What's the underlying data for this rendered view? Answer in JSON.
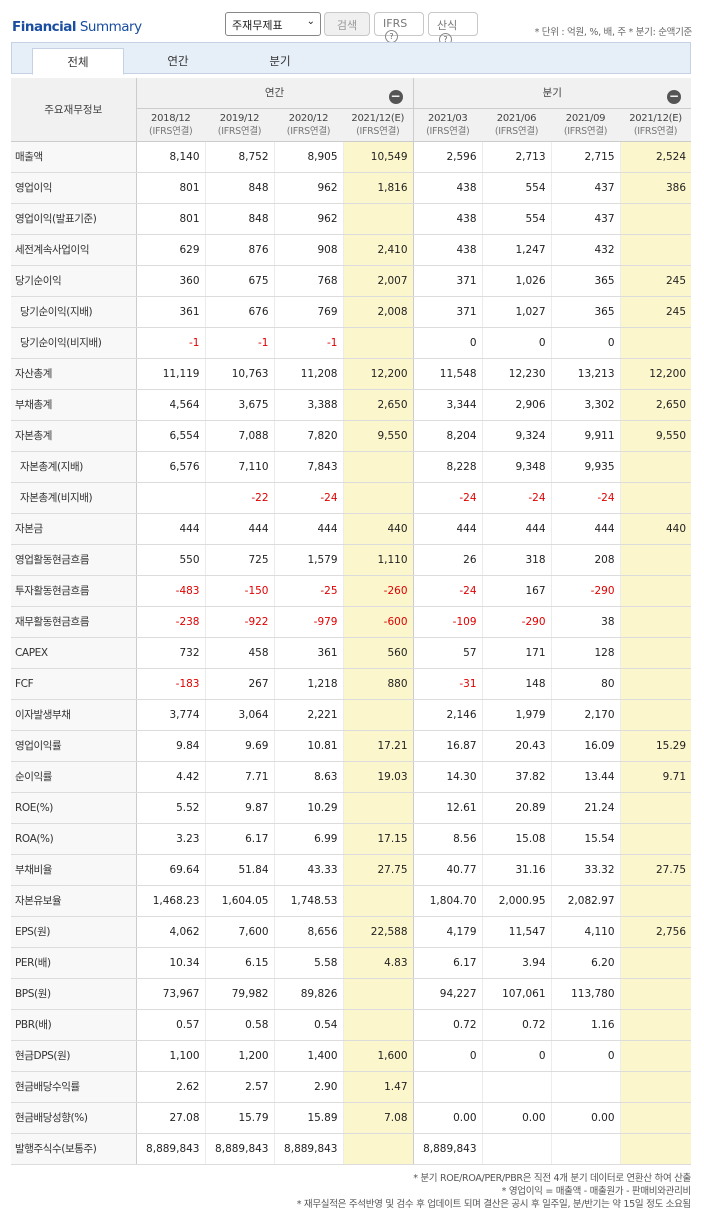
{
  "header": {
    "title_bold": "Financial",
    "title_rest": " Summary",
    "select_value": "주재무제표",
    "search_label": "검색",
    "ifrs_label": "IFRS",
    "calc_label": "산식",
    "help_icon": "?",
    "unit_note": "* 단위 : 억원, %, 배, 주    * 분기: 순액기준"
  },
  "tabs": [
    "전체",
    "연간",
    "분기"
  ],
  "table": {
    "corner_label": "주요재무정보",
    "annual_label": "연간",
    "quarter_label": "분기",
    "collapse_icon": "−",
    "columns": [
      {
        "period": "2018/12",
        "basis": "(IFRS연결)",
        "estimate": false
      },
      {
        "period": "2019/12",
        "basis": "(IFRS연결)",
        "estimate": false
      },
      {
        "period": "2020/12",
        "basis": "(IFRS연결)",
        "estimate": false
      },
      {
        "period": "2021/12(E)",
        "basis": "(IFRS연결)",
        "estimate": true
      },
      {
        "period": "2021/03",
        "basis": "(IFRS연결)",
        "estimate": false
      },
      {
        "period": "2021/06",
        "basis": "(IFRS연결)",
        "estimate": false
      },
      {
        "period": "2021/09",
        "basis": "(IFRS연결)",
        "estimate": false
      },
      {
        "period": "2021/12(E)",
        "basis": "(IFRS연결)",
        "estimate": true
      }
    ],
    "rows": [
      {
        "label": "매출액",
        "indent": false,
        "values": [
          "8,140",
          "8,752",
          "8,905",
          "10,549",
          "2,596",
          "2,713",
          "2,715",
          "2,524"
        ]
      },
      {
        "label": "영업이익",
        "indent": false,
        "values": [
          "801",
          "848",
          "962",
          "1,816",
          "438",
          "554",
          "437",
          "386"
        ]
      },
      {
        "label": "영업이익(발표기준)",
        "indent": false,
        "values": [
          "801",
          "848",
          "962",
          "",
          "438",
          "554",
          "437",
          ""
        ]
      },
      {
        "label": "세전계속사업이익",
        "indent": false,
        "values": [
          "629",
          "876",
          "908",
          "2,410",
          "438",
          "1,247",
          "432",
          ""
        ]
      },
      {
        "label": "당기순이익",
        "indent": false,
        "values": [
          "360",
          "675",
          "768",
          "2,007",
          "371",
          "1,026",
          "365",
          "245"
        ]
      },
      {
        "label": "당기순이익(지배)",
        "indent": true,
        "values": [
          "361",
          "676",
          "769",
          "2,008",
          "371",
          "1,027",
          "365",
          "245"
        ]
      },
      {
        "label": "당기순이익(비지배)",
        "indent": true,
        "values": [
          "-1",
          "-1",
          "-1",
          "",
          "0",
          "0",
          "0",
          ""
        ]
      },
      {
        "label": "자산총계",
        "indent": false,
        "values": [
          "11,119",
          "10,763",
          "11,208",
          "12,200",
          "11,548",
          "12,230",
          "13,213",
          "12,200"
        ]
      },
      {
        "label": "부채총계",
        "indent": false,
        "values": [
          "4,564",
          "3,675",
          "3,388",
          "2,650",
          "3,344",
          "2,906",
          "3,302",
          "2,650"
        ]
      },
      {
        "label": "자본총계",
        "indent": false,
        "values": [
          "6,554",
          "7,088",
          "7,820",
          "9,550",
          "8,204",
          "9,324",
          "9,911",
          "9,550"
        ]
      },
      {
        "label": "자본총계(지배)",
        "indent": true,
        "values": [
          "6,576",
          "7,110",
          "7,843",
          "",
          "8,228",
          "9,348",
          "9,935",
          ""
        ]
      },
      {
        "label": "자본총계(비지배)",
        "indent": true,
        "values": [
          "",
          "-22",
          "-24",
          "",
          "-24",
          "-24",
          "-24",
          ""
        ]
      },
      {
        "label": "자본금",
        "indent": false,
        "values": [
          "444",
          "444",
          "444",
          "440",
          "444",
          "444",
          "444",
          "440"
        ]
      },
      {
        "label": "영업활동현금흐름",
        "indent": false,
        "values": [
          "550",
          "725",
          "1,579",
          "1,110",
          "26",
          "318",
          "208",
          ""
        ]
      },
      {
        "label": "투자활동현금흐름",
        "indent": false,
        "values": [
          "-483",
          "-150",
          "-25",
          "-260",
          "-24",
          "167",
          "-290",
          ""
        ]
      },
      {
        "label": "재무활동현금흐름",
        "indent": false,
        "values": [
          "-238",
          "-922",
          "-979",
          "-600",
          "-109",
          "-290",
          "38",
          ""
        ]
      },
      {
        "label": "CAPEX",
        "indent": false,
        "values": [
          "732",
          "458",
          "361",
          "560",
          "57",
          "171",
          "128",
          ""
        ]
      },
      {
        "label": "FCF",
        "indent": false,
        "values": [
          "-183",
          "267",
          "1,218",
          "880",
          "-31",
          "148",
          "80",
          ""
        ]
      },
      {
        "label": "이자발생부채",
        "indent": false,
        "values": [
          "3,774",
          "3,064",
          "2,221",
          "",
          "2,146",
          "1,979",
          "2,170",
          ""
        ]
      },
      {
        "label": "영업이익률",
        "indent": false,
        "values": [
          "9.84",
          "9.69",
          "10.81",
          "17.21",
          "16.87",
          "20.43",
          "16.09",
          "15.29"
        ]
      },
      {
        "label": "순이익률",
        "indent": false,
        "values": [
          "4.42",
          "7.71",
          "8.63",
          "19.03",
          "14.30",
          "37.82",
          "13.44",
          "9.71"
        ]
      },
      {
        "label": "ROE(%)",
        "indent": false,
        "values": [
          "5.52",
          "9.87",
          "10.29",
          "",
          "12.61",
          "20.89",
          "21.24",
          ""
        ]
      },
      {
        "label": "ROA(%)",
        "indent": false,
        "values": [
          "3.23",
          "6.17",
          "6.99",
          "17.15",
          "8.56",
          "15.08",
          "15.54",
          ""
        ]
      },
      {
        "label": "부채비율",
        "indent": false,
        "values": [
          "69.64",
          "51.84",
          "43.33",
          "27.75",
          "40.77",
          "31.16",
          "33.32",
          "27.75"
        ]
      },
      {
        "label": "자본유보율",
        "indent": false,
        "values": [
          "1,468.23",
          "1,604.05",
          "1,748.53",
          "",
          "1,804.70",
          "2,000.95",
          "2,082.97",
          ""
        ]
      },
      {
        "label": "EPS(원)",
        "indent": false,
        "values": [
          "4,062",
          "7,600",
          "8,656",
          "22,588",
          "4,179",
          "11,547",
          "4,110",
          "2,756"
        ]
      },
      {
        "label": "PER(배)",
        "indent": false,
        "values": [
          "10.34",
          "6.15",
          "5.58",
          "4.83",
          "6.17",
          "3.94",
          "6.20",
          ""
        ]
      },
      {
        "label": "BPS(원)",
        "indent": false,
        "values": [
          "73,967",
          "79,982",
          "89,826",
          "",
          "94,227",
          "107,061",
          "113,780",
          ""
        ]
      },
      {
        "label": "PBR(배)",
        "indent": false,
        "values": [
          "0.57",
          "0.58",
          "0.54",
          "",
          "0.72",
          "0.72",
          "1.16",
          ""
        ]
      },
      {
        "label": "현금DPS(원)",
        "indent": false,
        "values": [
          "1,100",
          "1,200",
          "1,400",
          "1,600",
          "0",
          "0",
          "0",
          ""
        ]
      },
      {
        "label": "현금배당수익률",
        "indent": false,
        "values": [
          "2.62",
          "2.57",
          "2.90",
          "1.47",
          "",
          "",
          "",
          ""
        ]
      },
      {
        "label": "현금배당성향(%)",
        "indent": false,
        "values": [
          "27.08",
          "15.79",
          "15.89",
          "7.08",
          "0.00",
          "0.00",
          "0.00",
          ""
        ]
      },
      {
        "label": "발행주식수(보통주)",
        "indent": false,
        "values": [
          "8,889,843",
          "8,889,843",
          "8,889,843",
          "",
          "8,889,843",
          "",
          "",
          ""
        ]
      }
    ]
  },
  "footnotes": [
    "* 분기 ROE/ROA/PER/PBR은 직전 4개 분기 데이터로 연환산 하여 산출",
    "* 영업이익 = 매출액 - 매출원가 - 판매비와관리비",
    "* 재무실적은 주석반영 및 검수 후 업데이트 되며 결산은 공시 후 일주일, 분/반기는 약 15일 정도 소요됨"
  ],
  "colors": {
    "brand": "#1a4ea0",
    "estimate_bg": "#fcf6cc",
    "negative": "#e00000",
    "tab_bg": "#e6eef7"
  }
}
